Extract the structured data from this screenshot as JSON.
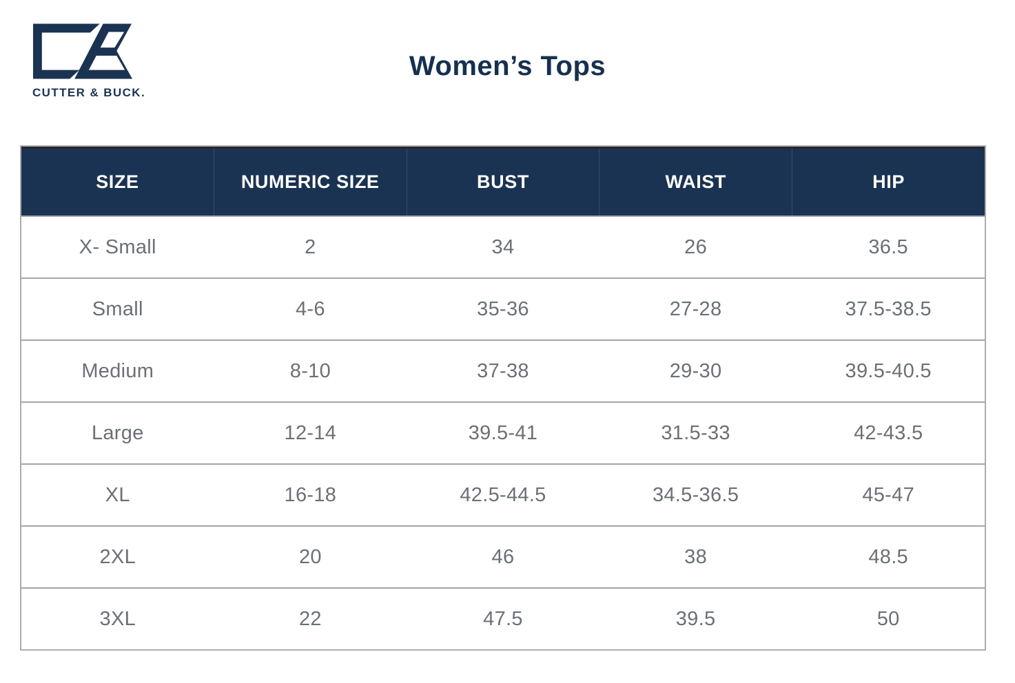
{
  "brand": {
    "logo_icon": "cutter-buck-cb-monogram",
    "wordmark": "CUTTER & BUCK."
  },
  "page": {
    "title": "Women’s Tops"
  },
  "table": {
    "columns": [
      "SIZE",
      "NUMERIC SIZE",
      "BUST",
      "WAIST",
      "HIP"
    ],
    "rows": [
      [
        "X- Small",
        "2",
        "34",
        "26",
        "36.5"
      ],
      [
        "Small",
        "4-6",
        "35-36",
        "27-28",
        "37.5-38.5"
      ],
      [
        "Medium",
        "8-10",
        "37-38",
        "29-30",
        "39.5-40.5"
      ],
      [
        "Large",
        "12-14",
        "39.5-41",
        "31.5-33",
        "42-43.5"
      ],
      [
        "XL",
        "16-18",
        "42.5-44.5",
        "34.5-36.5",
        "45-47"
      ],
      [
        "2XL",
        "20",
        "46",
        "38",
        "48.5"
      ],
      [
        "3XL",
        "22",
        "47.5",
        "39.5",
        "50"
      ]
    ]
  },
  "colors": {
    "header_background": "#1b3352",
    "title_text": "#16304f",
    "body_text": "#6b7076",
    "grid_line": "#a3a5a7",
    "outer_border": "#ababad"
  }
}
